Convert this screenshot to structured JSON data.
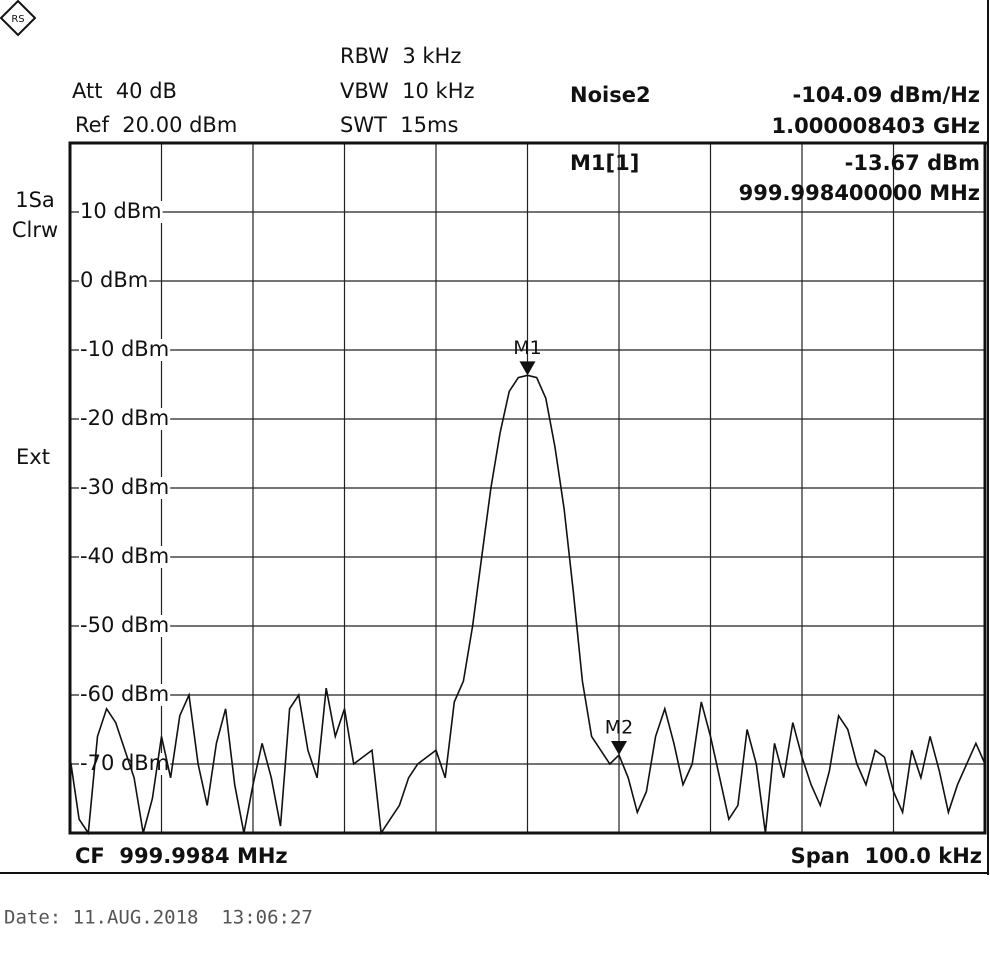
{
  "info": {
    "rbw": "RBW  3 kHz",
    "att": "Att  40 dB",
    "vbw": "VBW  10 kHz",
    "ref": "Ref  20.00 dBm",
    "swt": "SWT  15ms",
    "noise_name": "Noise2",
    "noise_level": "-104.09 dBm/Hz",
    "noise_freq": "1.000008403 GHz",
    "marker_name": "M1[1]",
    "marker_level": "-13.67 dBm",
    "marker_freq": "999.998400000 MHz",
    "trace_mode_1": "1Sa",
    "trace_mode_2": "Clrw",
    "ext": "Ext",
    "center": "CF  999.9984 MHz",
    "span": "Span  100.0 kHz",
    "date": "Date: 11.AUG.2018  13:06:27"
  },
  "chart_data": {
    "type": "line",
    "grid": true,
    "xlim": [
      999.9484,
      1000.0484
    ],
    "ylim": [
      -80,
      20
    ],
    "yticks": [
      {
        "value": 10,
        "label": "10 dBm"
      },
      {
        "value": 0,
        "label": "0 dBm"
      },
      {
        "value": -10,
        "label": "-10 dBm"
      },
      {
        "value": -20,
        "label": "-20 dBm"
      },
      {
        "value": -30,
        "label": "-30 dBm"
      },
      {
        "value": -40,
        "label": "-40 dBm"
      },
      {
        "value": -50,
        "label": "-50 dBm"
      },
      {
        "value": -60,
        "label": "-60 dBm"
      },
      {
        "value": -70,
        "label": "-70 dBm"
      }
    ],
    "x": [
      999.9484,
      999.9494,
      999.9504,
      999.9514,
      999.9524,
      999.9534,
      999.9544,
      999.9554,
      999.9564,
      999.9574,
      999.9584,
      999.9594,
      999.9604,
      999.9614,
      999.9624,
      999.9634,
      999.9644,
      999.9654,
      999.9664,
      999.9674,
      999.9684,
      999.9694,
      999.9704,
      999.9714,
      999.9724,
      999.9734,
      999.9744,
      999.9754,
      999.9764,
      999.9774,
      999.9784,
      999.9794,
      999.9804,
      999.9814,
      999.9824,
      999.9834,
      999.9844,
      999.9854,
      999.9864,
      999.9874,
      999.9884,
      999.9894,
      999.9904,
      999.9914,
      999.9924,
      999.9934,
      999.9944,
      999.9954,
      999.9964,
      999.9974,
      999.9984,
      999.9994,
      1000.0004,
      1000.0014,
      1000.0024,
      1000.0034,
      1000.0044,
      1000.0054,
      1000.0064,
      1000.0074,
      1000.0084,
      1000.0094,
      1000.0104,
      1000.0114,
      1000.0124,
      1000.0134,
      1000.0144,
      1000.0154,
      1000.0164,
      1000.0174,
      1000.0184,
      1000.0194,
      1000.0204,
      1000.0214,
      1000.0224,
      1000.0234,
      1000.0244,
      1000.0254,
      1000.0264,
      1000.0274,
      1000.0284,
      1000.0294,
      1000.0304,
      1000.0314,
      1000.0324,
      1000.0334,
      1000.0344,
      1000.0354,
      1000.0364,
      1000.0374,
      1000.0384,
      1000.0394,
      1000.0404,
      1000.0414,
      1000.0424,
      1000.0434,
      1000.0444,
      1000.0454,
      1000.0464,
      1000.0474,
      1000.0484
    ],
    "series": [
      {
        "color": "#111111",
        "values": [
          -69,
          -78,
          -80,
          -66,
          -62,
          -64,
          -68,
          -72,
          -80,
          -75,
          -66,
          -72,
          -63,
          -60,
          -70,
          -76,
          -67,
          -62,
          -73,
          -80,
          -73,
          -67,
          -72,
          -79,
          -62,
          -60,
          -68,
          -72,
          -59,
          -66,
          -62,
          -70,
          -69,
          -68,
          -80,
          -78,
          -76,
          -72,
          -70,
          -69,
          -68,
          -72,
          -61,
          -58,
          -50,
          -40,
          -30,
          -22,
          -16,
          -14,
          -13.67,
          -14,
          -17,
          -24,
          -33,
          -45,
          -58,
          -66,
          -68,
          -70,
          -68.7,
          -72,
          -77,
          -74,
          -66,
          -62,
          -67,
          -73,
          -70,
          -61,
          -66,
          -72,
          -78,
          -76,
          -65,
          -70,
          -80,
          -67,
          -72,
          -64,
          -69,
          -73,
          -76,
          -71,
          -63,
          -65,
          -70,
          -73,
          -68,
          -69,
          -74,
          -77,
          -68,
          -72,
          -66,
          -71,
          -77,
          -73,
          -70,
          -67,
          -70
        ]
      }
    ],
    "markers": [
      {
        "label": "M1",
        "x": 999.9984,
        "y": -13.67
      },
      {
        "label": "M2",
        "x": 1000.0084,
        "y": -68.7
      }
    ]
  }
}
